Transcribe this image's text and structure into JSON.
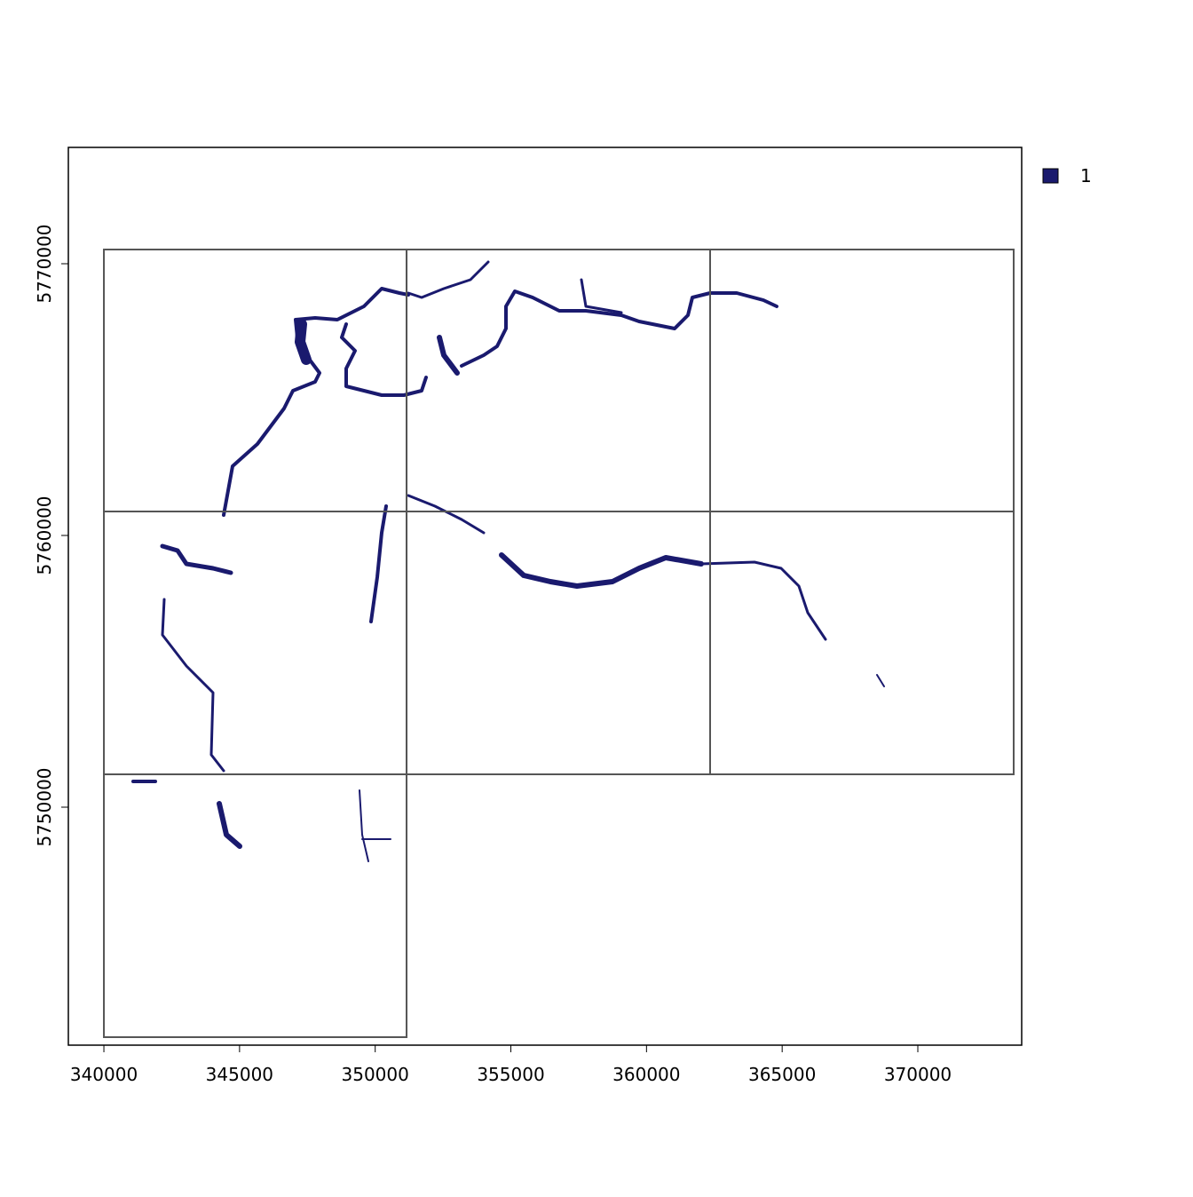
{
  "chart_data": {
    "type": "raster",
    "xlim": [
      338690,
      373828
    ],
    "ylim": [
      5741242,
      5774281
    ],
    "xticks": [
      340000,
      345000,
      350000,
      355000,
      360000,
      365000,
      370000
    ],
    "yticks": [
      5750000,
      5760000,
      5770000
    ],
    "tiles": [
      [
        340000,
        351156,
        5760882,
        5770523
      ],
      [
        351156,
        362344,
        5760882,
        5770523
      ],
      [
        362344,
        373533,
        5760882,
        5770523
      ],
      [
        340000,
        351156,
        5751209,
        5760882
      ],
      [
        351156,
        362344,
        5751209,
        5760882
      ],
      [
        362344,
        373533,
        5751209,
        5760882
      ],
      [
        340000,
        351156,
        5741536,
        5751209
      ]
    ],
    "series": [
      {
        "name": "1",
        "color": "#1a1a6e"
      }
    ],
    "legend": "top-right"
  }
}
